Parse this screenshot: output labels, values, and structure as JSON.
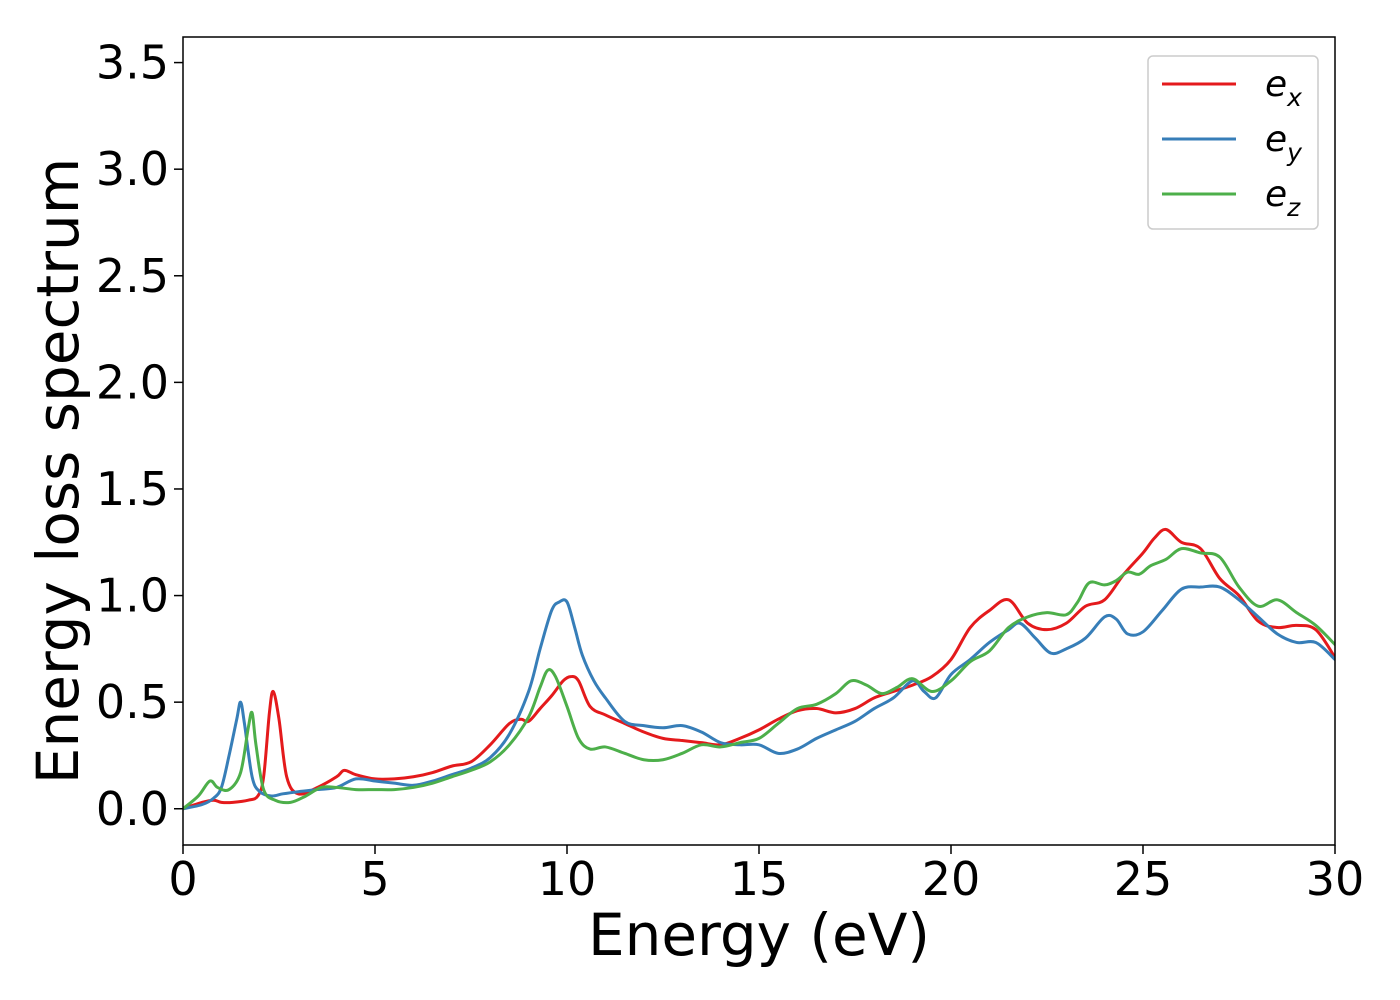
{
  "chart_data": {
    "type": "line",
    "title": "",
    "xlabel": "Energy (eV)",
    "ylabel": "Energy loss spectrum",
    "xlim": [
      0,
      30
    ],
    "ylim": [
      -0.17,
      3.62
    ],
    "xticks": [
      0,
      5,
      10,
      15,
      20,
      25,
      30
    ],
    "xtick_labels": [
      "0",
      "5",
      "10",
      "15",
      "20",
      "25",
      "30"
    ],
    "yticks": [
      0.0,
      0.5,
      1.0,
      1.5,
      2.0,
      2.5,
      3.0,
      3.5
    ],
    "ytick_labels": [
      "0.0",
      "0.5",
      "1.0",
      "1.5",
      "2.0",
      "2.5",
      "3.0",
      "3.5"
    ],
    "grid": false,
    "legend_position": "top-right",
    "series": [
      {
        "name": "e_x",
        "label_base": "e",
        "label_sub": "x",
        "color": "#e41a1c",
        "x": [
          0,
          0.5,
          0.8,
          1.0,
          1.3,
          1.7,
          1.95,
          2.1,
          2.25,
          2.35,
          2.5,
          2.7,
          3.0,
          3.5,
          4.0,
          4.2,
          4.5,
          5.0,
          5.5,
          6.0,
          6.5,
          7.0,
          7.5,
          8.0,
          8.5,
          8.8,
          9.0,
          9.3,
          9.6,
          9.9,
          10.1,
          10.3,
          10.6,
          11.0,
          11.5,
          12.0,
          12.5,
          13.0,
          13.5,
          14.0,
          14.5,
          15.0,
          15.5,
          16.0,
          16.5,
          17.0,
          17.5,
          18.0,
          18.5,
          19.0,
          19.5,
          20.0,
          20.5,
          21.0,
          21.5,
          22.0,
          22.5,
          23.0,
          23.5,
          24.0,
          24.5,
          25.0,
          25.3,
          25.6,
          26.0,
          26.5,
          27.0,
          27.5,
          28.0,
          28.5,
          29.0,
          29.5,
          30.0
        ],
        "y": [
          0.0,
          0.03,
          0.04,
          0.03,
          0.03,
          0.04,
          0.06,
          0.15,
          0.45,
          0.55,
          0.42,
          0.15,
          0.07,
          0.1,
          0.15,
          0.18,
          0.16,
          0.14,
          0.14,
          0.15,
          0.17,
          0.2,
          0.22,
          0.3,
          0.4,
          0.42,
          0.41,
          0.47,
          0.53,
          0.6,
          0.62,
          0.6,
          0.48,
          0.44,
          0.4,
          0.36,
          0.33,
          0.32,
          0.31,
          0.3,
          0.33,
          0.37,
          0.42,
          0.46,
          0.47,
          0.45,
          0.47,
          0.52,
          0.55,
          0.58,
          0.62,
          0.7,
          0.85,
          0.93,
          0.98,
          0.87,
          0.84,
          0.87,
          0.95,
          0.98,
          1.1,
          1.2,
          1.27,
          1.31,
          1.25,
          1.22,
          1.08,
          1.0,
          0.88,
          0.85,
          0.86,
          0.84,
          0.71
        ]
      },
      {
        "name": "e_y",
        "label_base": "e",
        "label_sub": "y",
        "color": "#377eb8",
        "x": [
          0,
          0.5,
          0.8,
          1.0,
          1.2,
          1.4,
          1.5,
          1.6,
          1.8,
          2.0,
          2.3,
          2.6,
          3.0,
          3.5,
          4.0,
          4.5,
          5.0,
          5.5,
          6.0,
          6.5,
          7.0,
          7.5,
          8.0,
          8.5,
          9.0,
          9.3,
          9.6,
          9.8,
          10.0,
          10.2,
          10.4,
          10.7,
          11.0,
          11.5,
          12.0,
          12.5,
          13.0,
          13.5,
          14.0,
          14.5,
          15.0,
          15.5,
          16.0,
          16.5,
          17.0,
          17.5,
          18.0,
          18.5,
          19.0,
          19.3,
          19.6,
          20.0,
          20.5,
          21.0,
          21.5,
          21.8,
          22.2,
          22.6,
          23.0,
          23.5,
          24.0,
          24.3,
          24.6,
          25.0,
          25.5,
          26.0,
          26.5,
          27.0,
          27.5,
          28.0,
          28.5,
          29.0,
          29.5,
          30.0
        ],
        "y": [
          0.0,
          0.02,
          0.05,
          0.1,
          0.25,
          0.42,
          0.5,
          0.4,
          0.15,
          0.08,
          0.06,
          0.07,
          0.08,
          0.09,
          0.1,
          0.14,
          0.13,
          0.12,
          0.11,
          0.13,
          0.16,
          0.19,
          0.24,
          0.35,
          0.55,
          0.75,
          0.93,
          0.97,
          0.97,
          0.85,
          0.72,
          0.6,
          0.52,
          0.41,
          0.39,
          0.38,
          0.39,
          0.36,
          0.31,
          0.3,
          0.3,
          0.26,
          0.28,
          0.33,
          0.37,
          0.41,
          0.47,
          0.52,
          0.6,
          0.55,
          0.52,
          0.63,
          0.7,
          0.78,
          0.84,
          0.87,
          0.8,
          0.73,
          0.75,
          0.8,
          0.9,
          0.89,
          0.82,
          0.83,
          0.93,
          1.03,
          1.04,
          1.04,
          0.98,
          0.9,
          0.82,
          0.78,
          0.78,
          0.7
        ]
      },
      {
        "name": "e_z",
        "label_base": "e",
        "label_sub": "z",
        "color": "#4daf4a",
        "x": [
          0,
          0.4,
          0.7,
          0.9,
          1.2,
          1.5,
          1.7,
          1.8,
          1.9,
          2.1,
          2.4,
          2.8,
          3.2,
          3.6,
          4.0,
          4.5,
          5.0,
          5.5,
          6.0,
          6.5,
          7.0,
          7.5,
          8.0,
          8.5,
          9.0,
          9.3,
          9.5,
          9.7,
          10.0,
          10.3,
          10.6,
          11.0,
          11.5,
          12.0,
          12.5,
          13.0,
          13.5,
          14.0,
          14.5,
          15.0,
          15.5,
          16.0,
          16.5,
          17.0,
          17.4,
          17.8,
          18.2,
          18.6,
          19.0,
          19.5,
          20.0,
          20.5,
          21.0,
          21.5,
          22.0,
          22.5,
          23.0,
          23.3,
          23.6,
          24.0,
          24.3,
          24.6,
          24.9,
          25.2,
          25.6,
          26.0,
          26.5,
          27.0,
          27.5,
          28.0,
          28.5,
          29.0,
          29.5,
          30.0
        ],
        "y": [
          0.0,
          0.06,
          0.13,
          0.1,
          0.09,
          0.17,
          0.38,
          0.45,
          0.3,
          0.09,
          0.04,
          0.03,
          0.06,
          0.1,
          0.1,
          0.09,
          0.09,
          0.09,
          0.1,
          0.12,
          0.15,
          0.18,
          0.22,
          0.3,
          0.43,
          0.57,
          0.65,
          0.62,
          0.48,
          0.33,
          0.28,
          0.29,
          0.26,
          0.23,
          0.23,
          0.26,
          0.3,
          0.29,
          0.31,
          0.33,
          0.4,
          0.47,
          0.49,
          0.54,
          0.6,
          0.58,
          0.54,
          0.57,
          0.61,
          0.55,
          0.6,
          0.69,
          0.74,
          0.85,
          0.9,
          0.92,
          0.91,
          0.97,
          1.06,
          1.05,
          1.07,
          1.11,
          1.1,
          1.14,
          1.17,
          1.22,
          1.2,
          1.18,
          1.04,
          0.95,
          0.98,
          0.92,
          0.86,
          0.77
        ]
      }
    ]
  }
}
